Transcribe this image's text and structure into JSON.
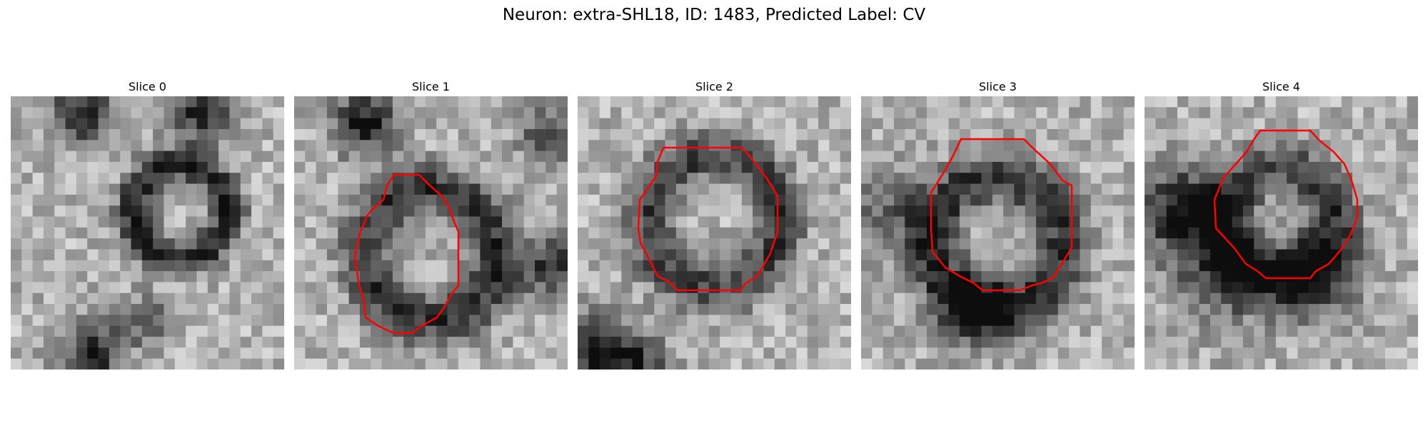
{
  "figure": {
    "title": "Neuron: extra-SHL18, ID: 1483, Predicted Label: CV"
  },
  "panels": [
    {
      "label": "Slice 0",
      "has_outline": false
    },
    {
      "label": "Slice 1",
      "has_outline": true
    },
    {
      "label": "Slice 2",
      "has_outline": true
    },
    {
      "label": "Slice 3",
      "has_outline": true
    },
    {
      "label": "Slice 4",
      "has_outline": true
    }
  ],
  "colors": {
    "outline": "#ff0000",
    "background": "#ffffff",
    "colormap": "grayscale"
  }
}
